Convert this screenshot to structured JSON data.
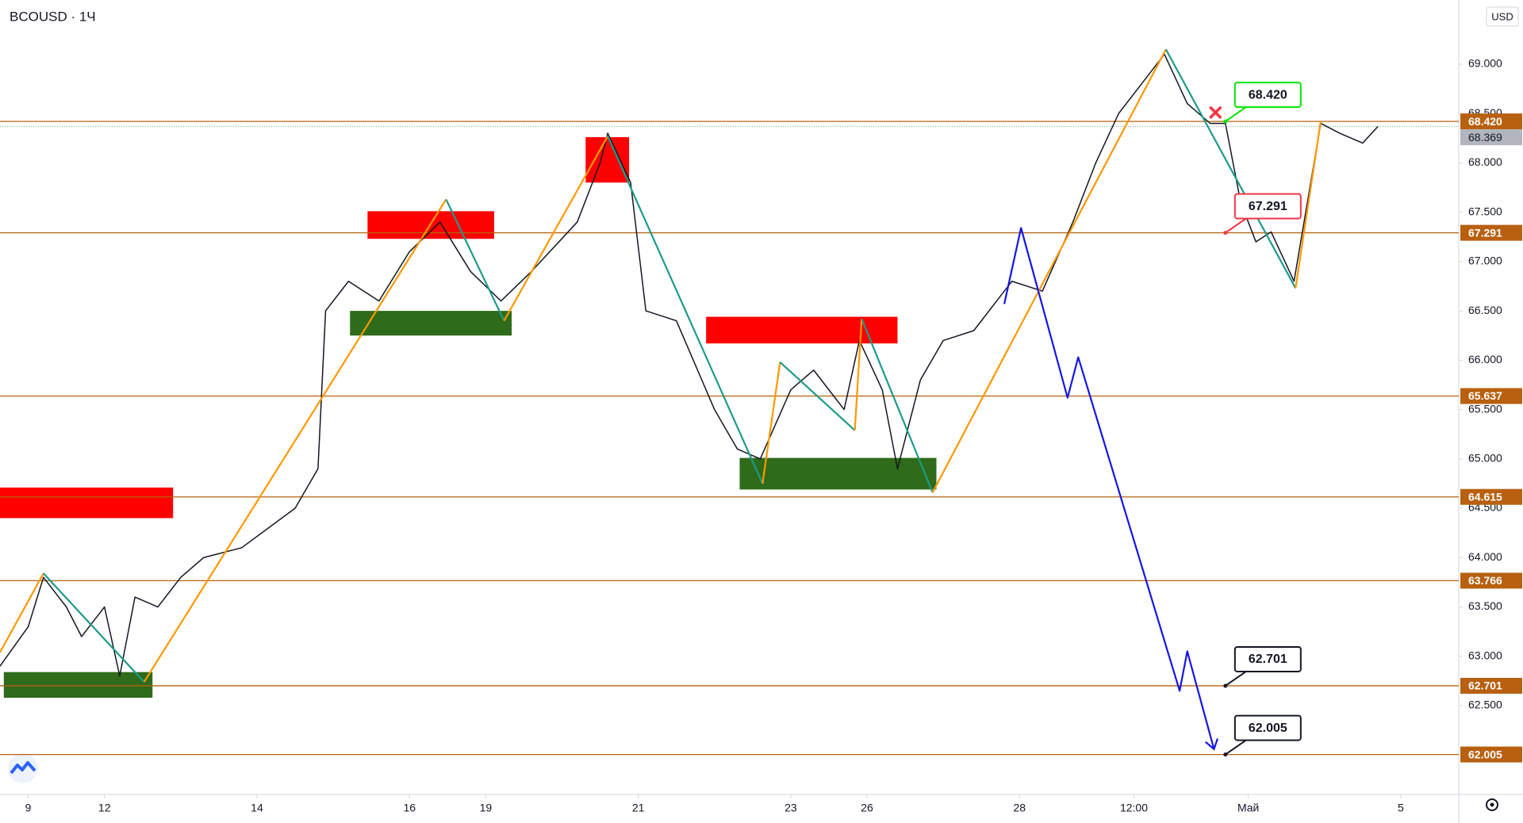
{
  "chart_data": {
    "type": "line",
    "title": "BCOUSD · 1Ч",
    "currency": "USD",
    "xlim": [
      -0.37,
      18.76
    ],
    "ylim": [
      61.6,
      69.65
    ],
    "xticks": [
      {
        "value": 0,
        "label": "9"
      },
      {
        "value": 1,
        "label": "12"
      },
      {
        "value": 3,
        "label": "14"
      },
      {
        "value": 5,
        "label": "16"
      },
      {
        "value": 6,
        "label": "19"
      },
      {
        "value": 8,
        "label": "21"
      },
      {
        "value": 10,
        "label": "23"
      },
      {
        "value": 11,
        "label": "26"
      },
      {
        "value": 13,
        "label": "28"
      },
      {
        "value": 14.5,
        "label": "12:00"
      },
      {
        "value": 16,
        "label": "Май"
      },
      {
        "value": 18,
        "label": "5"
      }
    ],
    "yticks": [
      {
        "value": 62.5,
        "label": "62.500"
      },
      {
        "value": 63,
        "label": "63.000"
      },
      {
        "value": 63.5,
        "label": "63.500"
      },
      {
        "value": 64,
        "label": "64.000"
      },
      {
        "value": 64.5,
        "label": "64.500"
      },
      {
        "value": 65,
        "label": "65.000"
      },
      {
        "value": 65.5,
        "label": "65.500"
      },
      {
        "value": 66,
        "label": "66.000"
      },
      {
        "value": 66.5,
        "label": "66.500"
      },
      {
        "value": 67,
        "label": "67.000"
      },
      {
        "value": 67.5,
        "label": "67.500"
      },
      {
        "value": 68,
        "label": "68.000"
      },
      {
        "value": 68.5,
        "label": "68.500"
      },
      {
        "value": 69,
        "label": "69.000"
      }
    ],
    "price": {
      "color": "#131722",
      "x": [
        -0.37,
        0,
        0.2,
        0.5,
        0.7,
        1.0,
        1.2,
        1.4,
        1.7,
        2.0,
        2.3,
        2.8,
        3.5,
        3.8,
        3.9,
        4.2,
        4.6,
        5.0,
        5.4,
        5.8,
        6.2,
        6.6,
        7.2,
        7.5,
        7.6,
        7.9,
        8.1,
        8.5,
        9.0,
        9.3,
        9.6,
        10.0,
        10.3,
        10.7,
        10.9,
        11.2,
        11.4,
        11.7,
        12.0,
        12.4,
        12.9,
        13.3,
        13.7,
        14.0,
        14.3,
        14.6,
        14.9,
        15.2,
        15.5,
        15.7,
        15.9,
        16.1,
        16.3,
        16.6,
        16.95,
        17.2,
        17.5,
        17.7
      ],
      "values": [
        62.9,
        63.3,
        63.8,
        63.5,
        63.2,
        63.5,
        62.8,
        63.6,
        63.5,
        63.8,
        64.0,
        64.1,
        64.5,
        64.9,
        66.5,
        66.8,
        66.6,
        67.1,
        67.4,
        66.9,
        66.6,
        66.9,
        67.4,
        68.0,
        68.3,
        67.8,
        66.5,
        66.4,
        65.5,
        65.1,
        65.0,
        65.7,
        65.9,
        65.5,
        66.2,
        65.7,
        64.9,
        65.8,
        66.2,
        66.3,
        66.8,
        66.7,
        67.4,
        68.0,
        68.5,
        68.8,
        69.1,
        68.6,
        68.4,
        68.4,
        67.6,
        67.2,
        67.3,
        66.8,
        68.4,
        68.3,
        68.2,
        68.369
      ]
    },
    "zigzag": {
      "up_color": "#ff9800",
      "down_color": "#1e9a8a",
      "x": [
        -0.37,
        0.2,
        1.52,
        5.48,
        6.24,
        7.6,
        9.63,
        9.86,
        10.84,
        10.93,
        11.86,
        14.92,
        16.62,
        16.95
      ],
      "values": [
        63.04,
        63.84,
        62.74,
        67.63,
        66.4,
        68.27,
        64.75,
        65.98,
        65.29,
        66.42,
        64.66,
        69.15,
        66.73,
        68.42
      ]
    },
    "forecast": {
      "color": "#1515e6",
      "x": [
        12.8,
        13.02,
        13.63,
        13.77,
        15.1,
        15.2,
        15.55
      ],
      "values": [
        66.57,
        67.34,
        65.62,
        66.03,
        62.65,
        63.05,
        62.06
      ]
    },
    "zones": [
      {
        "x": [
          -0.37,
          1.9
        ],
        "y": [
          64.4,
          64.71
        ],
        "color": "#ff0000"
      },
      {
        "x": [
          4.45,
          6.11
        ],
        "y": [
          67.23,
          67.51
        ],
        "color": "#ff0000"
      },
      {
        "x": [
          7.31,
          7.88
        ],
        "y": [
          67.8,
          68.26
        ],
        "color": "#ff0000"
      },
      {
        "x": [
          8.89,
          11.4
        ],
        "y": [
          66.17,
          66.44
        ],
        "color": "#ff0000"
      },
      {
        "x": [
          -0.32,
          1.63
        ],
        "y": [
          62.58,
          62.84
        ],
        "color": "#2e6b1a"
      },
      {
        "x": [
          4.22,
          6.34
        ],
        "y": [
          66.25,
          66.5
        ],
        "color": "#2e6b1a"
      },
      {
        "x": [
          9.33,
          11.91
        ],
        "y": [
          64.69,
          65.01
        ],
        "color": "#2e6b1a"
      }
    ],
    "levels": {
      "color": "#b8600f",
      "values": [
        68.42,
        67.291,
        65.637,
        64.615,
        63.766,
        62.701,
        62.005
      ],
      "value_labels": [
        "68.420",
        "67.291",
        "65.637",
        "64.615",
        "63.766",
        "62.701",
        "62.005"
      ]
    },
    "current": {
      "value": 68.369,
      "label": "68.369",
      "color": "#b2b5be"
    },
    "callouts": [
      {
        "x": 15.7,
        "y": 68.42,
        "label": "68.420",
        "color": "#00e600"
      },
      {
        "x": 15.7,
        "y": 67.291,
        "label": "67.291",
        "color": "#f23645"
      },
      {
        "x": 15.7,
        "y": 62.701,
        "label": "62.701",
        "color": "#131722"
      },
      {
        "x": 15.7,
        "y": 62.005,
        "label": "62.005",
        "color": "#131722"
      }
    ],
    "marker": {
      "x": 15.57,
      "y": 68.51,
      "color": "#f23645"
    }
  }
}
